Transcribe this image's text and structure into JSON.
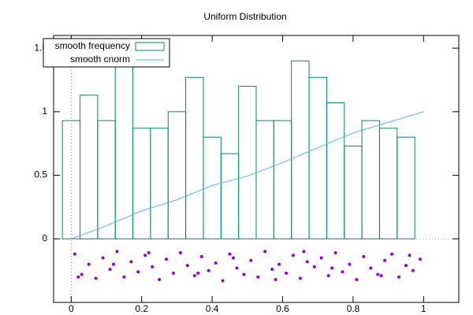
{
  "chart_data": {
    "type": "histogram",
    "title": "Uniform Distribution",
    "name": "smooth frequency",
    "color": "#00896b",
    "bins": [
      -0.025,
      0.025,
      0.075,
      0.125,
      0.175,
      0.225,
      0.275,
      0.325,
      0.375,
      0.425,
      0.475,
      0.525,
      0.575,
      0.625,
      0.675,
      0.725,
      0.775,
      0.825,
      0.875,
      0.925,
      0.975
    ],
    "values": [
      0.93,
      1.13,
      0.93,
      1.4,
      0.87,
      0.87,
      1.0,
      1.27,
      0.8,
      0.67,
      1.2,
      0.93,
      0.93,
      1.4,
      1.27,
      1.07,
      0.73,
      0.93,
      0.87,
      0.8
    ],
    "xlim": [
      -0.05,
      1.1
    ],
    "ylim": [
      -0.5,
      1.6
    ],
    "xticks": [
      0,
      0.2,
      0.4,
      0.6,
      0.8,
      1
    ],
    "yticks": [
      0,
      0.5,
      1,
      1.5
    ],
    "legend": "top-left",
    "overlays": [
      {
        "type": "line",
        "name": "smooth cnorm",
        "color": "#56b4e9",
        "x": [
          0,
          0.1,
          0.2,
          0.3,
          0.4,
          0.5,
          0.6,
          0.7,
          0.8,
          0.9,
          1.0
        ],
        "values": [
          0,
          0.103,
          0.22,
          0.307,
          0.42,
          0.493,
          0.6,
          0.717,
          0.833,
          0.917,
          1.0
        ]
      },
      {
        "type": "scatter",
        "color": "#9400d3",
        "x": [
          0.01,
          0.03,
          0.05,
          0.07,
          0.09,
          0.11,
          0.13,
          0.15,
          0.17,
          0.19,
          0.21,
          0.23,
          0.25,
          0.27,
          0.29,
          0.31,
          0.33,
          0.35,
          0.37,
          0.39,
          0.41,
          0.43,
          0.45,
          0.47,
          0.49,
          0.51,
          0.53,
          0.55,
          0.57,
          0.59,
          0.61,
          0.63,
          0.65,
          0.67,
          0.69,
          0.71,
          0.73,
          0.75,
          0.77,
          0.79,
          0.81,
          0.83,
          0.85,
          0.87,
          0.89,
          0.91,
          0.93,
          0.95,
          0.97,
          0.99,
          0.02,
          0.12,
          0.22,
          0.36,
          0.46,
          0.58,
          0.66,
          0.74,
          0.88,
          0.96
        ],
        "values": [
          -0.12,
          -0.28,
          -0.2,
          -0.31,
          -0.15,
          -0.24,
          -0.1,
          -0.3,
          -0.18,
          -0.26,
          -0.13,
          -0.22,
          -0.32,
          -0.16,
          -0.27,
          -0.11,
          -0.21,
          -0.29,
          -0.14,
          -0.25,
          -0.19,
          -0.33,
          -0.12,
          -0.23,
          -0.28,
          -0.17,
          -0.3,
          -0.1,
          -0.24,
          -0.2,
          -0.27,
          -0.13,
          -0.31,
          -0.18,
          -0.22,
          -0.15,
          -0.29,
          -0.11,
          -0.26,
          -0.2,
          -0.32,
          -0.14,
          -0.23,
          -0.28,
          -0.17,
          -0.12,
          -0.3,
          -0.21,
          -0.25,
          -0.16,
          -0.3,
          -0.2,
          -0.11,
          -0.27,
          -0.15,
          -0.32,
          -0.1,
          -0.23,
          -0.29,
          -0.13
        ]
      }
    ]
  }
}
